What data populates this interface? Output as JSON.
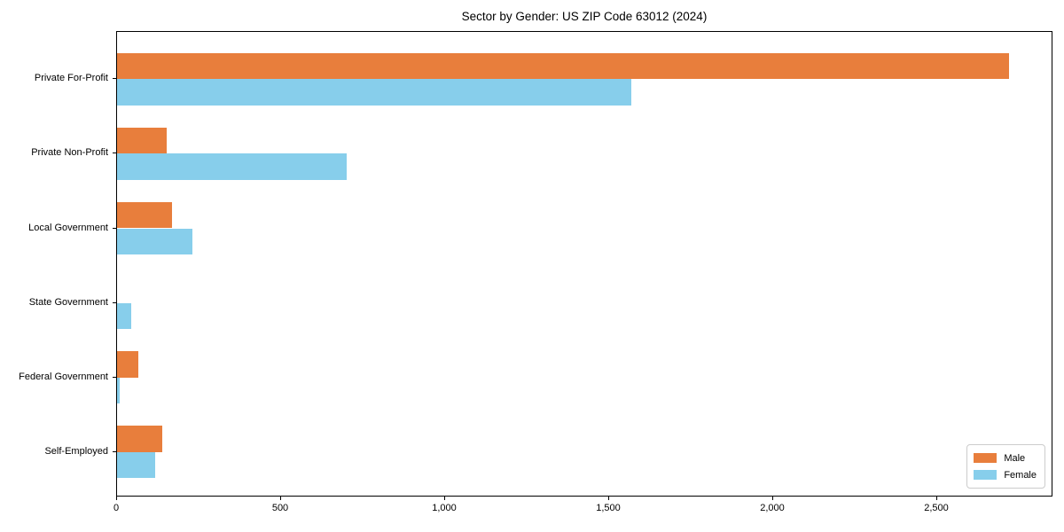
{
  "chart_data": {
    "type": "bar",
    "orientation": "horizontal",
    "title": "Sector by Gender: US ZIP Code 63012 (2024)",
    "categories": [
      "Private For-Profit",
      "Private Non-Profit",
      "Local Government",
      "State Government",
      "Federal Government",
      "Self-Employed"
    ],
    "series": [
      {
        "name": "Male",
        "color": "#E87E3C",
        "values": [
          2718,
          150,
          167,
          0,
          65,
          137
        ]
      },
      {
        "name": "Female",
        "color": "#87CEEB",
        "values": [
          1567,
          700,
          230,
          43,
          8,
          115
        ]
      }
    ],
    "xlabel": "",
    "ylabel": "",
    "xlim": [
      0,
      2854
    ],
    "x_ticks": [
      0,
      500,
      1000,
      1500,
      2000,
      2500
    ],
    "x_tick_labels": [
      "0",
      "500",
      "1,000",
      "1,500",
      "2,000",
      "2,500"
    ],
    "grid": false,
    "legend": {
      "position": "lower right",
      "items": [
        "Male",
        "Female"
      ]
    },
    "frame": "full-box",
    "background_color": "#ffffff",
    "text_color": "#000000"
  }
}
